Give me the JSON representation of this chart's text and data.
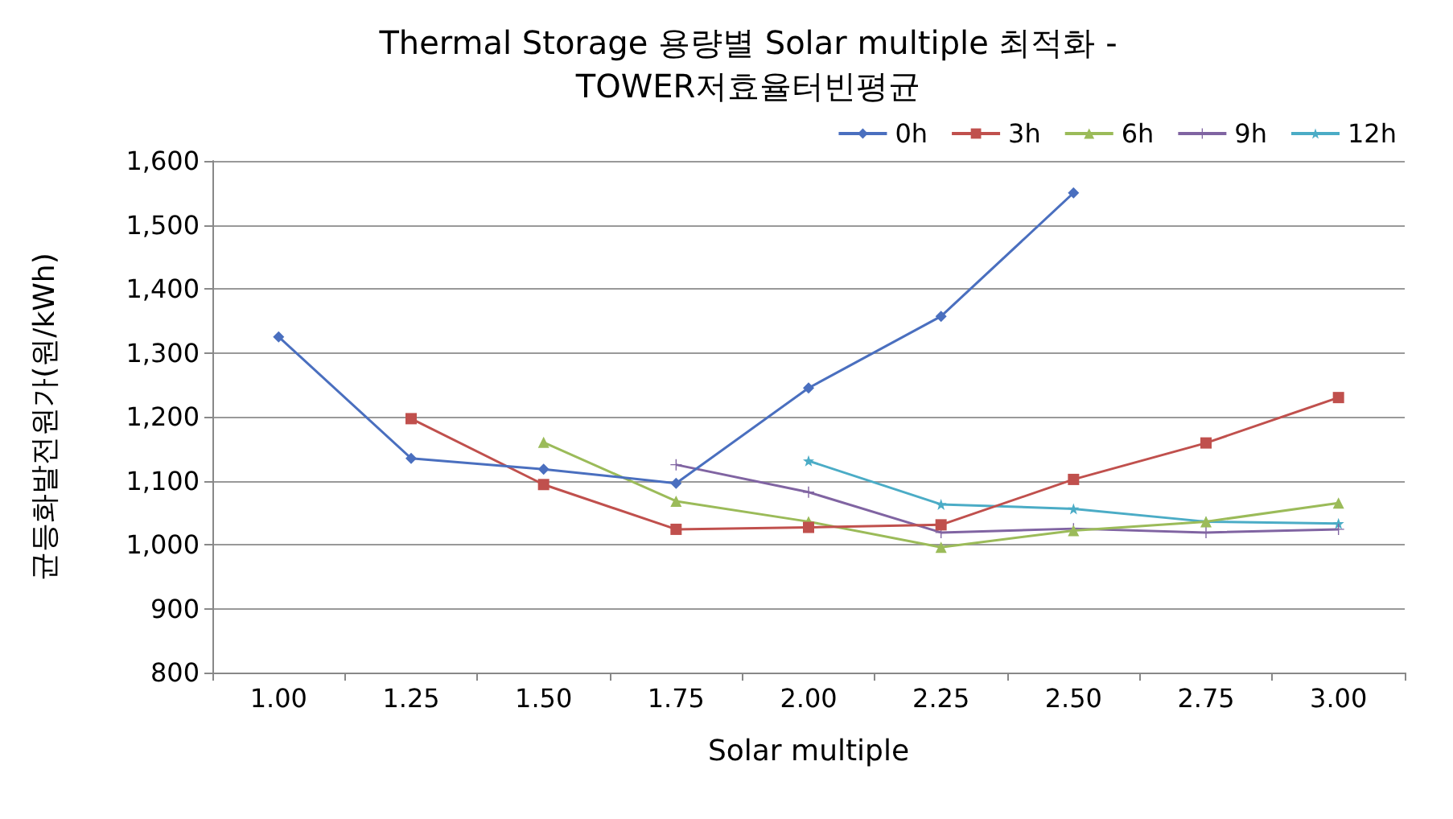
{
  "chart_data": {
    "type": "line",
    "title": "Thermal Storage 용량별 Solar multiple 최적화 -\nTOWER저효율터빈평균",
    "xlabel": "Solar multiple",
    "ylabel": "균등화발전원가(원/kWh)",
    "categories": [
      "1.00",
      "1.25",
      "1.50",
      "1.75",
      "2.00",
      "2.25",
      "2.50",
      "2.75",
      "3.00"
    ],
    "series": [
      {
        "name": "0h",
        "color": "#4a6fbf",
        "marker": "diamond",
        "values": [
          1325,
          1135,
          1118,
          1096,
          1245,
          1357,
          1550,
          null,
          null
        ]
      },
      {
        "name": "3h",
        "color": "#c0504d",
        "marker": "square",
        "values": [
          null,
          1197,
          1094,
          1024,
          1027,
          1031,
          1102,
          1159,
          1230
        ]
      },
      {
        "name": "6h",
        "color": "#9bbb59",
        "marker": "triangle",
        "values": [
          null,
          null,
          1160,
          1068,
          1036,
          996,
          1022,
          1036,
          1065
        ]
      },
      {
        "name": "9h",
        "color": "#8064a2",
        "marker": "cross",
        "values": [
          null,
          null,
          null,
          1125,
          1082,
          1019,
          1025,
          1019,
          1024
        ]
      },
      {
        "name": "12h",
        "color": "#4bacc6",
        "marker": "star",
        "values": [
          null,
          null,
          null,
          null,
          1131,
          1063,
          1056,
          1036,
          1033
        ]
      }
    ],
    "ylim": [
      800,
      1600
    ],
    "yticks": [
      {
        "value": 800,
        "label": "800"
      },
      {
        "value": 900,
        "label": "900"
      },
      {
        "value": 1000,
        "label": "1,000"
      },
      {
        "value": 1100,
        "label": "1,100"
      },
      {
        "value": 1200,
        "label": "1,200"
      },
      {
        "value": 1300,
        "label": "1,300"
      },
      {
        "value": 1400,
        "label": "1,400"
      },
      {
        "value": 1500,
        "label": "1,500"
      },
      {
        "value": 1600,
        "label": "1,600"
      }
    ],
    "grid": "y",
    "legend": "top right"
  }
}
